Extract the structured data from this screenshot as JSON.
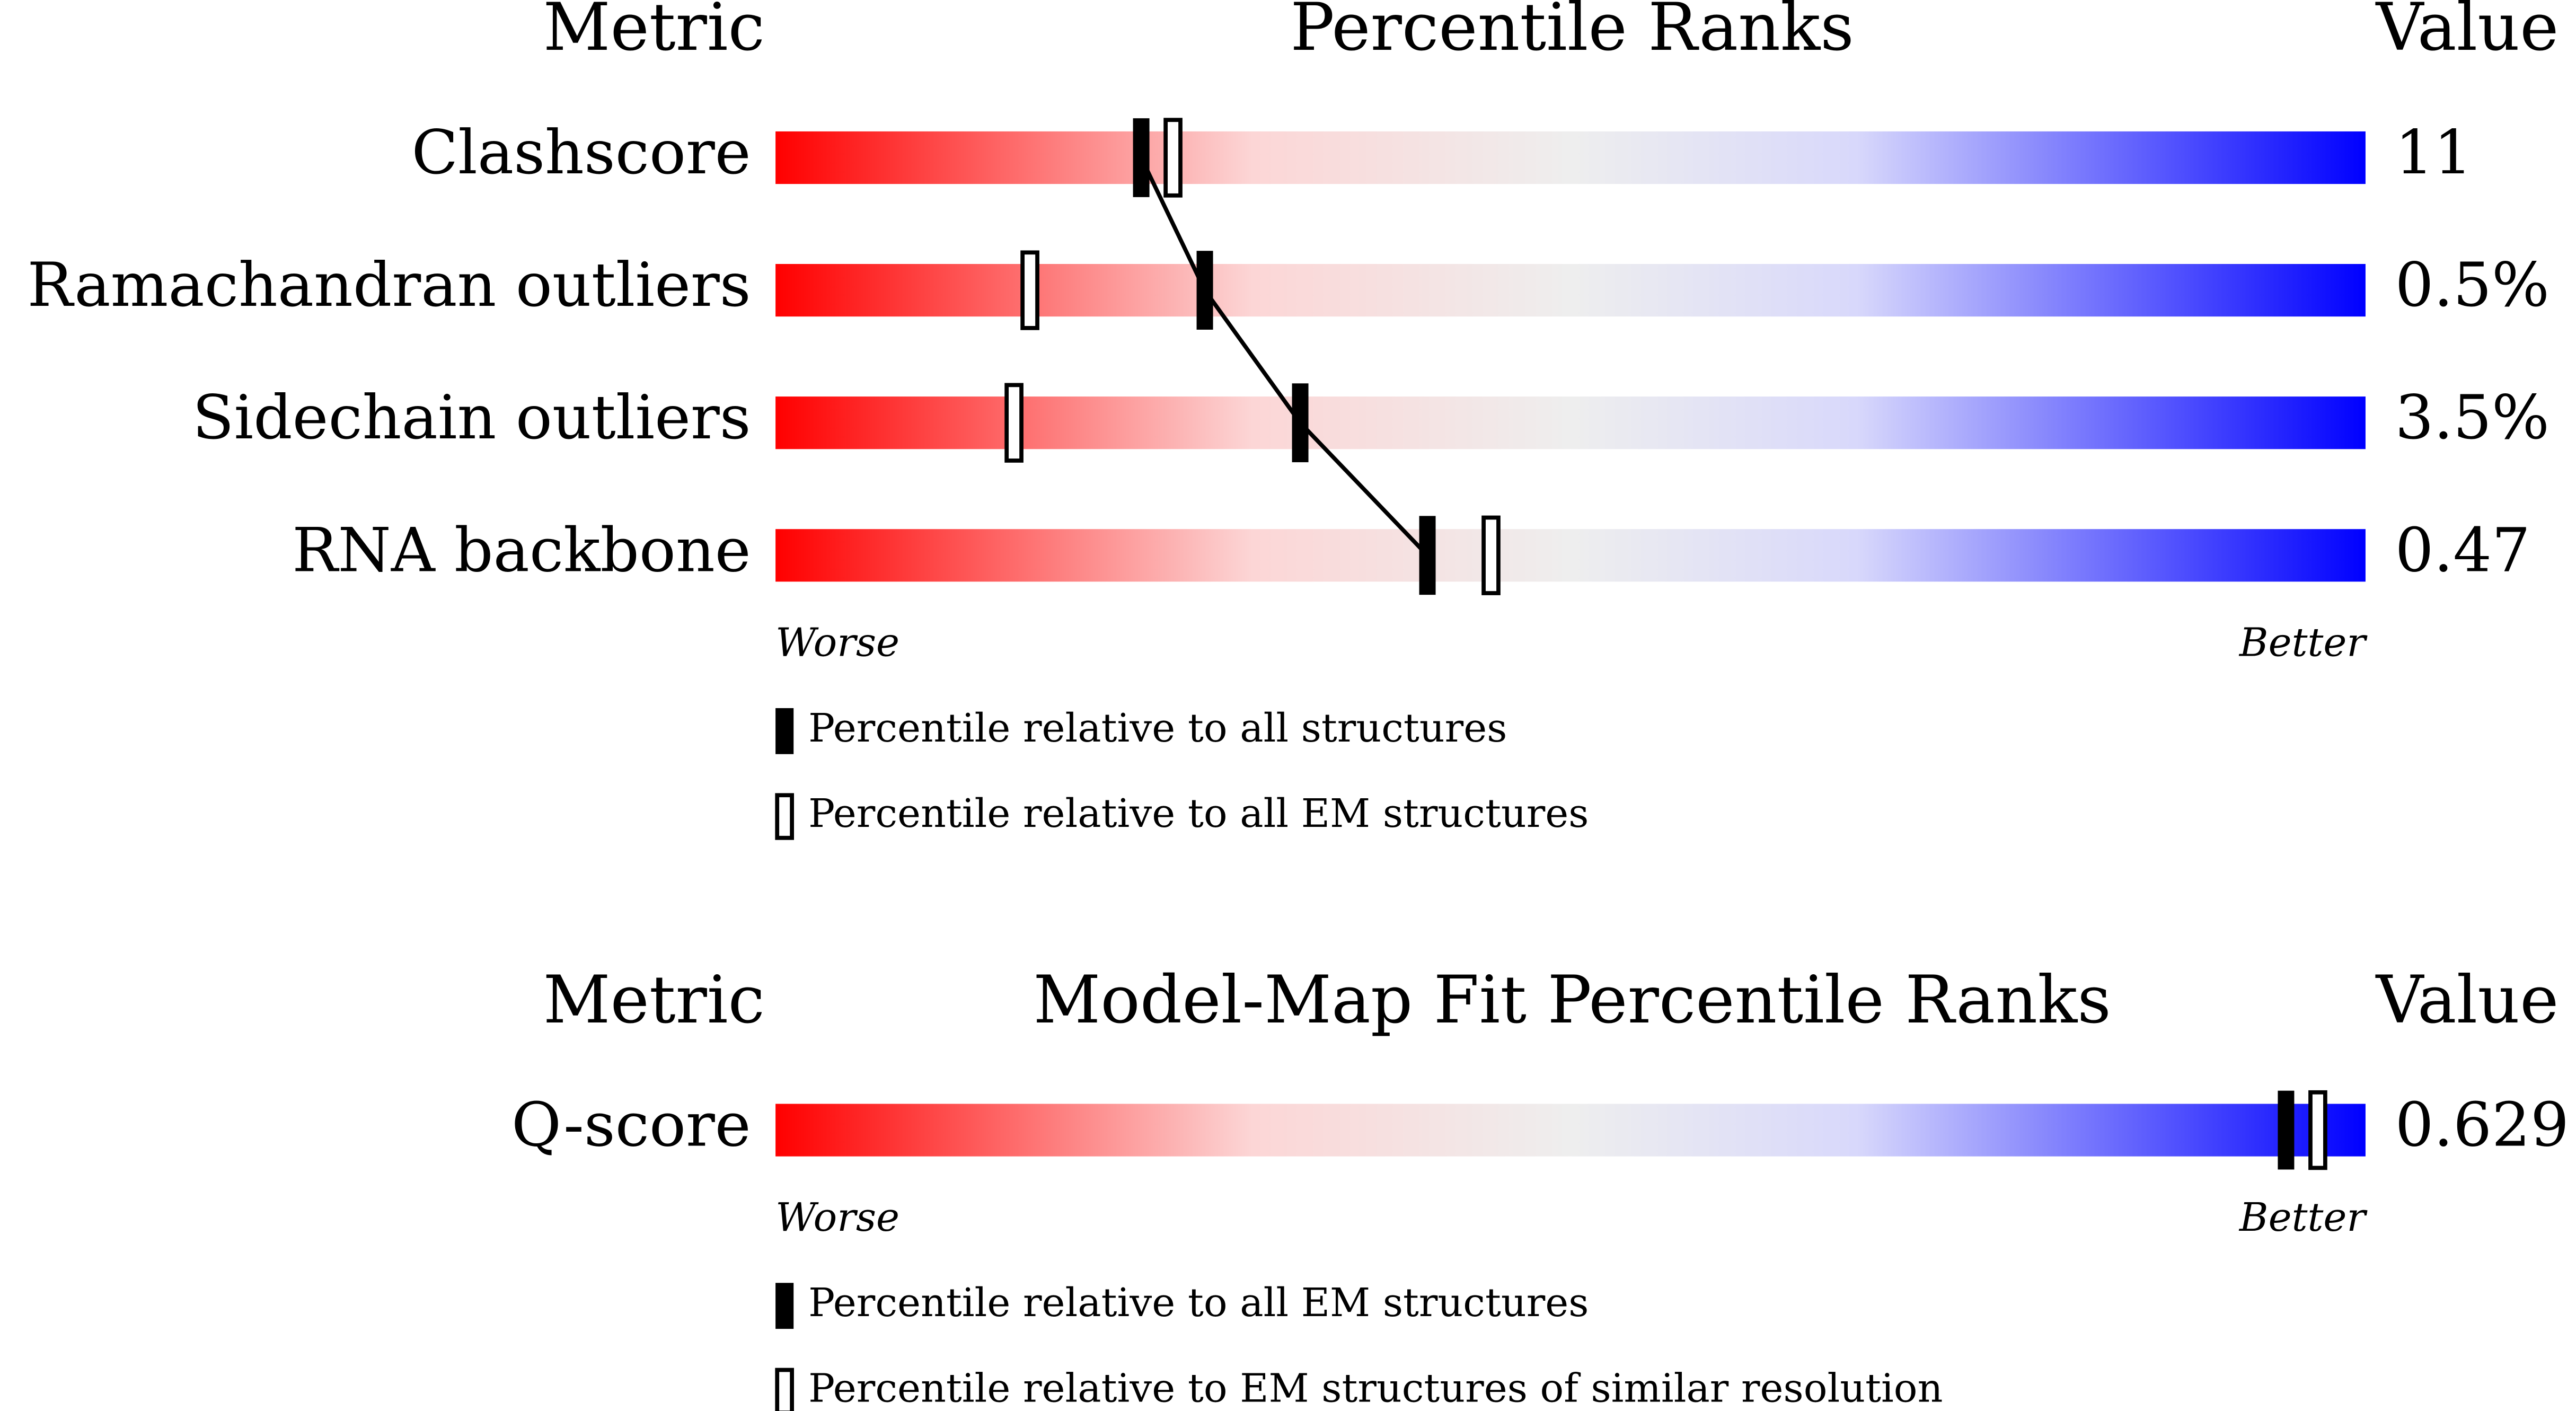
{
  "chart_data": [
    {
      "type": "percentile",
      "header_metric": "Metric",
      "title": "Percentile Ranks",
      "header_value": "Value",
      "categories": [
        "Clashscore",
        "Ramachandran outliers",
        "Sidechain outliers",
        "RNA backbone"
      ],
      "metric_values": [
        "11",
        "0.5%",
        "3.5%",
        "0.47"
      ],
      "worse": "Worse",
      "better": "Better",
      "xlim": [
        0,
        100
      ],
      "series": [
        {
          "name": "Percentile relative to all structures",
          "style": "filled",
          "line": true,
          "values": [
            23,
            27,
            33,
            41
          ]
        },
        {
          "name": "Percentile relative to all EM structures",
          "style": "open",
          "line": false,
          "values": [
            25,
            16,
            15,
            45
          ]
        }
      ]
    },
    {
      "type": "percentile",
      "header_metric": "Metric",
      "title": "Model-Map Fit Percentile Ranks",
      "header_value": "Value",
      "categories": [
        "Q-score"
      ],
      "metric_values": [
        "0.629"
      ],
      "worse": "Worse",
      "better": "Better",
      "xlim": [
        0,
        100
      ],
      "series": [
        {
          "name": "Percentile relative to all EM structures",
          "style": "filled",
          "line": false,
          "values": [
            95
          ]
        },
        {
          "name": "Percentile relative to EM structures of similar resolution",
          "style": "open",
          "line": false,
          "values": [
            97
          ]
        }
      ]
    }
  ]
}
